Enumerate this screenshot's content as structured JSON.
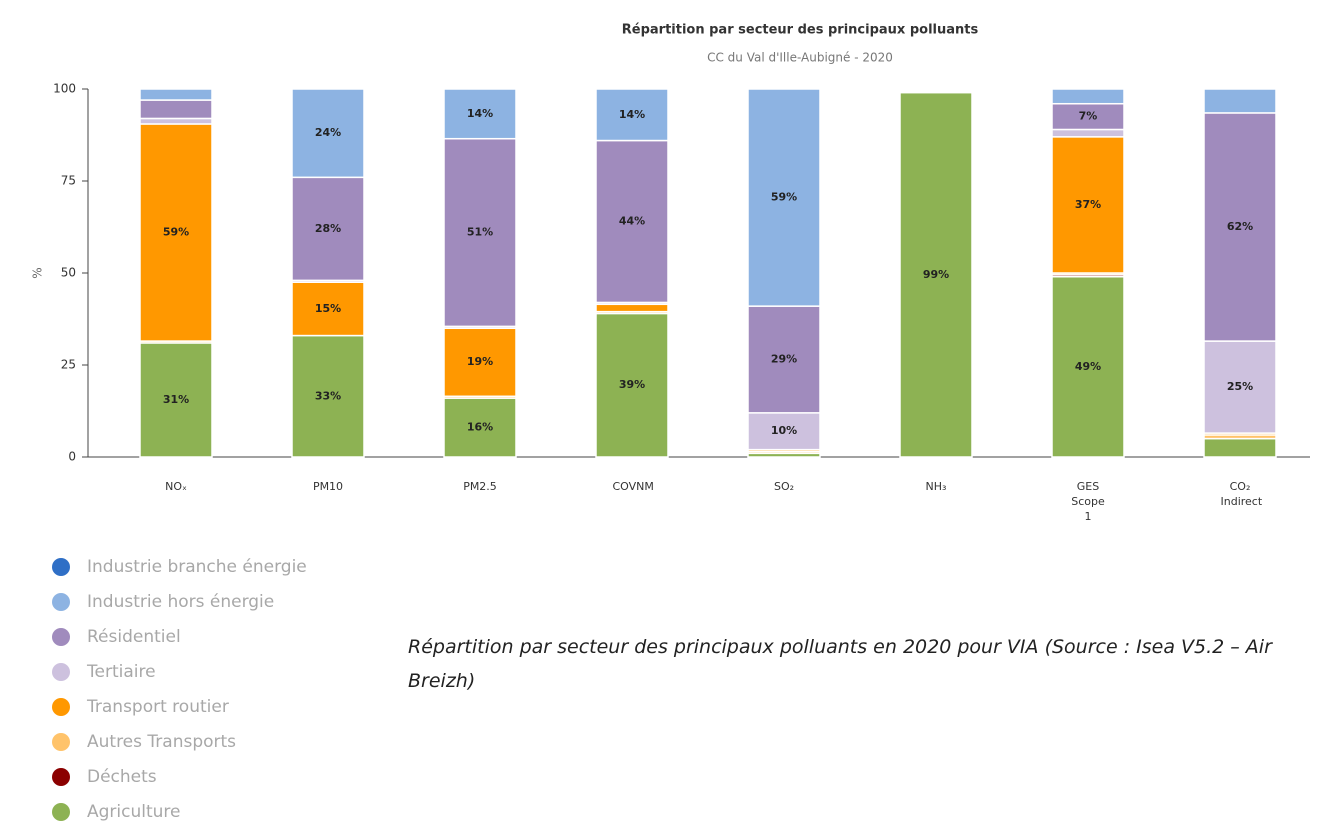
{
  "chart_data": {
    "type": "stacked_bar",
    "title": "Répartition par secteur des principaux polluants",
    "subtitle": "CC du Val d'Ille-Aubigné - 2020",
    "y_label": "%",
    "caption": "Répartition par secteur des principaux polluants en 2020 pour VIA (Source : Isea V5.2 – Air Breizh)",
    "categories": [
      "NOₓ",
      "PM10",
      "PM2.5",
      "COVNM",
      "SO₂",
      "NH₃",
      "GES Scope 1",
      "CO₂ Indirect"
    ],
    "ylim": [
      0,
      100
    ],
    "yticks": [
      0,
      25,
      50,
      75,
      100
    ],
    "series": [
      {
        "name": "Agriculture",
        "color": "#8db253",
        "values": [
          31,
          33,
          16,
          39,
          1,
          99,
          49,
          5
        ],
        "value_labels": [
          "31%",
          "33%",
          "16%",
          "39%",
          null,
          "99%",
          "49%",
          null
        ]
      },
      {
        "name": "Déchets",
        "color": "#8b0000",
        "values": [
          0,
          0,
          0,
          0,
          0,
          0,
          0.5,
          0
        ],
        "value_labels": [
          null,
          null,
          null,
          null,
          null,
          null,
          null,
          null
        ]
      },
      {
        "name": "Autres Transports",
        "color": "#ffc36a",
        "values": [
          0.5,
          0,
          0.5,
          0.5,
          0.5,
          0,
          0.5,
          1
        ],
        "value_labels": [
          null,
          null,
          null,
          null,
          null,
          null,
          null,
          null
        ]
      },
      {
        "name": "Transport routier",
        "color": "#ff9800",
        "values": [
          59,
          14.5,
          18.5,
          2,
          0.5,
          0,
          37,
          0.5
        ],
        "value_labels": [
          "59%",
          "15%",
          "19%",
          null,
          null,
          null,
          "37%",
          null
        ]
      },
      {
        "name": "Tertiaire",
        "color": "#cdc1de",
        "values": [
          1.5,
          0.5,
          0.5,
          0.5,
          10,
          0,
          2,
          25
        ],
        "value_labels": [
          null,
          null,
          null,
          null,
          "10%",
          null,
          null,
          "25%"
        ]
      },
      {
        "name": "Résidentiel",
        "color": "#a08bbd",
        "values": [
          5,
          28,
          51,
          44,
          29,
          0,
          7,
          62
        ],
        "value_labels": [
          null,
          "28%",
          "51%",
          "44%",
          "29%",
          null,
          "7%",
          "62%"
        ]
      },
      {
        "name": "Industrie hors énergie",
        "color": "#8db3e2",
        "values": [
          3,
          24,
          13.5,
          14,
          59,
          0,
          4,
          6.5
        ],
        "value_labels": [
          null,
          "24%",
          "14%",
          "14%",
          "59%",
          null,
          null,
          null
        ]
      },
      {
        "name": "Industrie branche énergie",
        "color": "#2f6fc6",
        "values": [
          0,
          0,
          0,
          0,
          0,
          0,
          0,
          0
        ],
        "value_labels": [
          null,
          null,
          null,
          null,
          null,
          null,
          null,
          null
        ]
      }
    ]
  }
}
